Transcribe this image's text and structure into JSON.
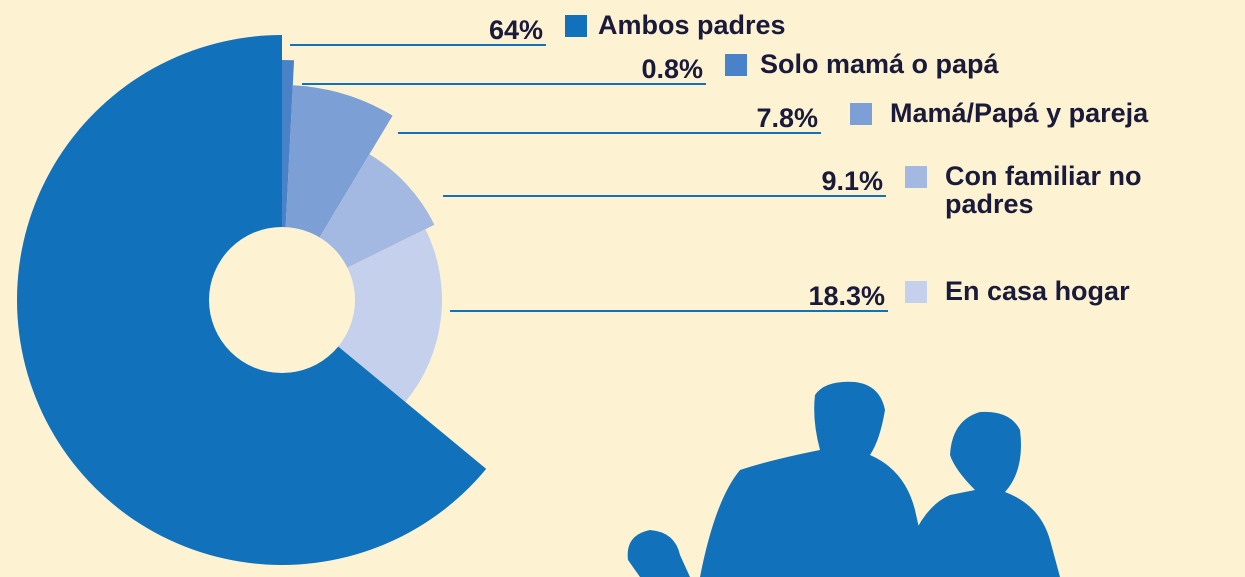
{
  "chart_data": {
    "type": "pie",
    "categories": [
      "Ambos padres",
      "Solo mamá o papá",
      "Mamá/Papá y pareja",
      "Con familiar no padres",
      "En casa hogar"
    ],
    "values": [
      64,
      0.8,
      7.8,
      9.1,
      18.3
    ],
    "value_labels": [
      "64%",
      "0.8%",
      "7.8%",
      "9.1%",
      "18.3%"
    ],
    "colors": [
      "#1172bb",
      "#4a82c9",
      "#7c9fd6",
      "#a3b9e1",
      "#c5d1ec"
    ]
  }
}
